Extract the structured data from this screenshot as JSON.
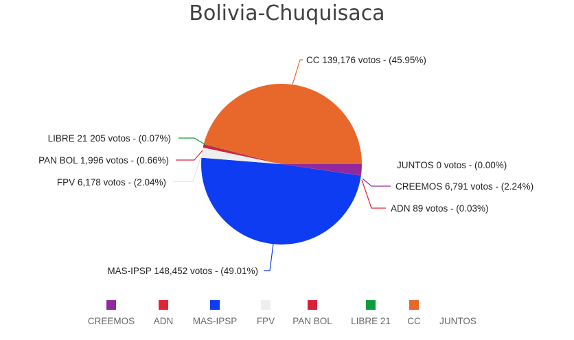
{
  "title": "Bolivia-Chuquisaca",
  "chart_data": {
    "type": "pie",
    "title": "Bolivia-Chuquisaca",
    "slices": [
      {
        "name": "CREEMOS",
        "votes": 6791,
        "percent": 2.24,
        "label": "CREEMOS 6,791 votos - (2.24%)",
        "color": "#93299e"
      },
      {
        "name": "ADN",
        "votes": 89,
        "percent": 0.03,
        "label": "ADN 89 votos - (0.03%)",
        "color": "#e52233"
      },
      {
        "name": "MAS-IPSP",
        "votes": 148452,
        "percent": 49.01,
        "label": "MAS-IPSP 148,452 votos - (49.01%)",
        "color": "#0e3cf2"
      },
      {
        "name": "FPV",
        "votes": 6178,
        "percent": 2.04,
        "label": "FPV 6,178 votos - (2.04%)",
        "color": "#eeeeee"
      },
      {
        "name": "PAN BOL",
        "votes": 1996,
        "percent": 0.66,
        "label": "PAN BOL 1,996 votos - (0.66%)",
        "color": "#d9203a"
      },
      {
        "name": "LIBRE 21",
        "votes": 205,
        "percent": 0.07,
        "label": "LIBRE 21 205 votos - (0.07%)",
        "color": "#0d9d3b"
      },
      {
        "name": "CC",
        "votes": 139176,
        "percent": 45.95,
        "label": "CC 139,176 votos - (45.95%)",
        "color": "#e8672a"
      },
      {
        "name": "JUNTOS",
        "votes": 0,
        "percent": 0.0,
        "label": "JUNTOS 0 votos - (0.00%)",
        "color": "#ffffff"
      }
    ],
    "legend_position": "bottom"
  }
}
